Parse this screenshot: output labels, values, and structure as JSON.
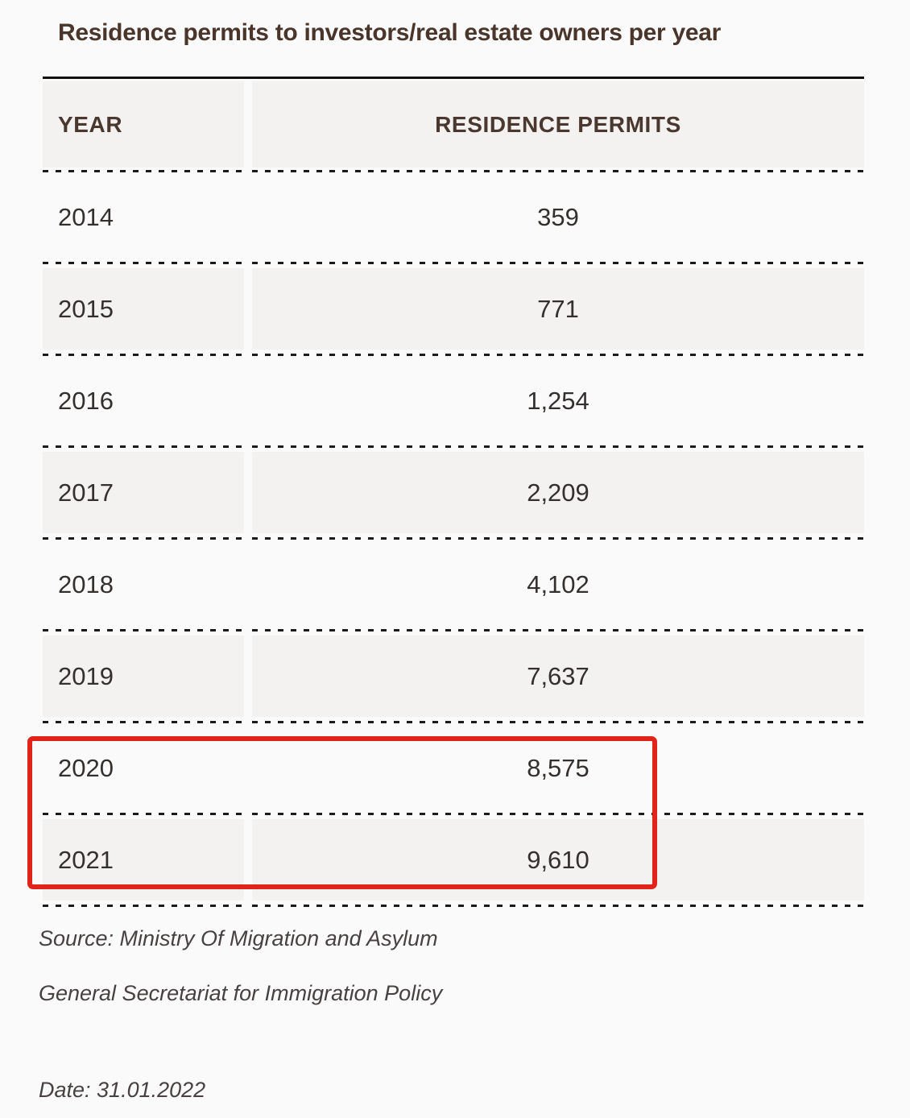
{
  "title": "Residence permits to investors/real estate owners per year",
  "table": {
    "columns": [
      "YEAR",
      "RESIDENCE PERMITS"
    ],
    "rows": [
      {
        "year": "2014",
        "permits": "359"
      },
      {
        "year": "2015",
        "permits": "771"
      },
      {
        "year": "2016",
        "permits": "1,254"
      },
      {
        "year": "2017",
        "permits": "2,209"
      },
      {
        "year": "2018",
        "permits": "4,102"
      },
      {
        "year": "2019",
        "permits": "7,637"
      },
      {
        "year": "2020",
        "permits": "8,575"
      },
      {
        "year": "2021",
        "permits": "9,610"
      }
    ]
  },
  "highlight": {
    "years": [
      "2020",
      "2021"
    ],
    "color": "#e2231a"
  },
  "footer": {
    "source_line1": "Source: Ministry Of Migration and Asylum",
    "source_line2": "General Secretariat for Immigration Policy",
    "date_line": "Date: 31.01.2022"
  },
  "colors": {
    "accent_red": "#e2231a",
    "row_alt_bg": "#f3f2f1",
    "title_text": "#4a352b",
    "body_text": "#33302e",
    "page_bg": "#fbfafa"
  },
  "chart_data": {
    "type": "table",
    "title": "Residence permits to investors/real estate owners per year",
    "columns": [
      "YEAR",
      "RESIDENCE PERMITS"
    ],
    "categories": [
      "2014",
      "2015",
      "2016",
      "2017",
      "2018",
      "2019",
      "2020",
      "2021"
    ],
    "values": [
      359,
      771,
      1254,
      2209,
      4102,
      7637,
      8575,
      9610
    ],
    "highlighted_years": [
      "2020",
      "2021"
    ],
    "source": "Ministry Of Migration and Asylum, General Secretariat for Immigration Policy",
    "date": "31.01.2022"
  }
}
